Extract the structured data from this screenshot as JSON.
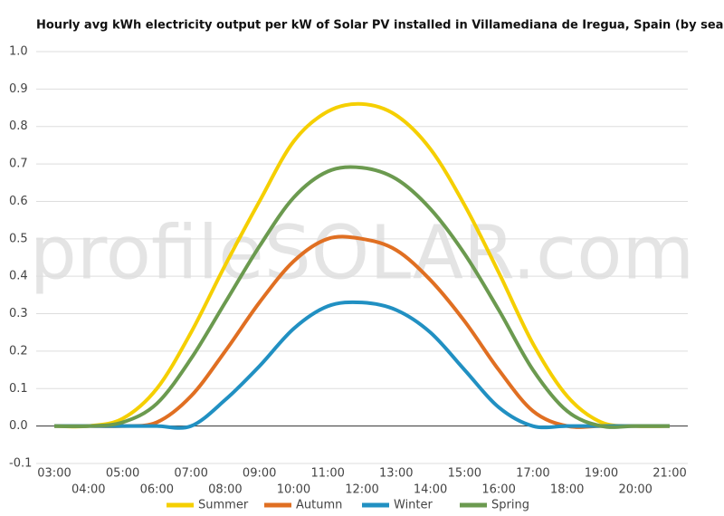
{
  "chart_data": {
    "type": "line",
    "title": "Hourly avg kWh electricity output per kW of Solar PV installed in Villamediana de Iregua, Spain (by season)",
    "watermark": "profileSOLAR.com",
    "categories": [
      "03:00",
      "04:00",
      "05:00",
      "06:00",
      "07:00",
      "08:00",
      "09:00",
      "10:00",
      "11:00",
      "12:00",
      "13:00",
      "14:00",
      "15:00",
      "16:00",
      "17:00",
      "18:00",
      "19:00",
      "20:00",
      "21:00"
    ],
    "series": [
      {
        "name": "Summer",
        "color": "#f5cf00",
        "values": [
          0,
          0,
          0.02,
          0.1,
          0.25,
          0.43,
          0.6,
          0.76,
          0.84,
          0.86,
          0.83,
          0.74,
          0.59,
          0.41,
          0.22,
          0.08,
          0.01,
          0,
          0
        ]
      },
      {
        "name": "Autumn",
        "color": "#e06f22",
        "values": [
          0,
          0,
          0,
          0.01,
          0.08,
          0.2,
          0.33,
          0.44,
          0.5,
          0.5,
          0.47,
          0.39,
          0.28,
          0.15,
          0.04,
          0,
          0,
          0,
          0
        ]
      },
      {
        "name": "Winter",
        "color": "#2190c2",
        "values": [
          0,
          0,
          0,
          0,
          0,
          0.07,
          0.16,
          0.26,
          0.32,
          0.33,
          0.31,
          0.25,
          0.15,
          0.05,
          0,
          0,
          0,
          0,
          0
        ]
      },
      {
        "name": "Spring",
        "color": "#6b9a4f",
        "values": [
          0,
          0,
          0.01,
          0.06,
          0.18,
          0.33,
          0.48,
          0.61,
          0.68,
          0.69,
          0.66,
          0.58,
          0.46,
          0.31,
          0.15,
          0.04,
          0,
          0,
          0
        ]
      }
    ],
    "ylim": [
      -0.1,
      1.0
    ],
    "yticks": [
      -0.1,
      {
        "value": 0,
        "label": "0.0"
      },
      0.1,
      0.2,
      0.3,
      0.4,
      0.5,
      0.6,
      0.7,
      0.8,
      0.9,
      {
        "value": 1,
        "label": "1.0"
      }
    ],
    "grid": true,
    "legend": "bottom"
  }
}
